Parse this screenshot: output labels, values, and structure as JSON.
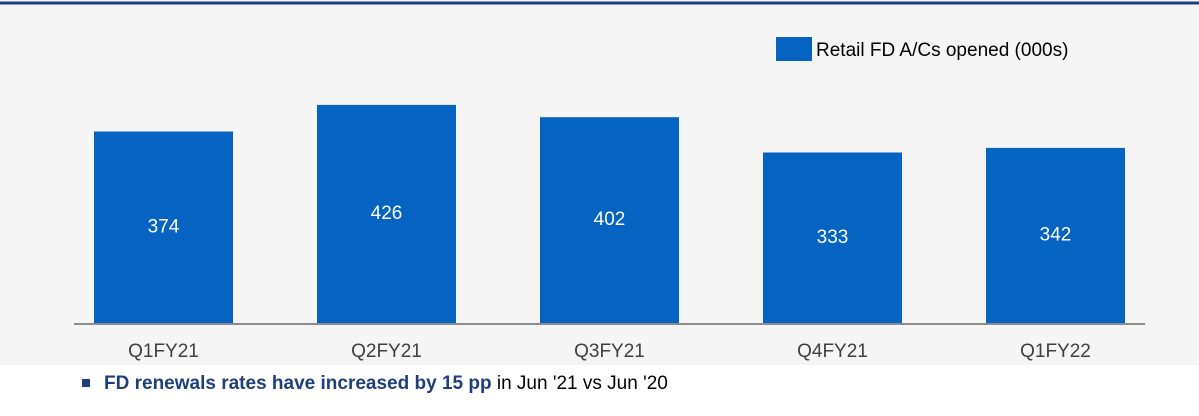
{
  "chart_data": {
    "type": "bar",
    "legend": "Retail FD A/Cs opened (000s)",
    "categories": [
      "Q1FY21",
      "Q2FY21",
      "Q3FY21",
      "Q4FY21",
      "Q1FY22"
    ],
    "values": [
      374,
      426,
      402,
      333,
      342
    ],
    "color": "#0563c1",
    "note": {
      "bold": "FD renewals rates have increased by 15 pp",
      "rest": " in Jun '21 vs Jun '20"
    }
  }
}
